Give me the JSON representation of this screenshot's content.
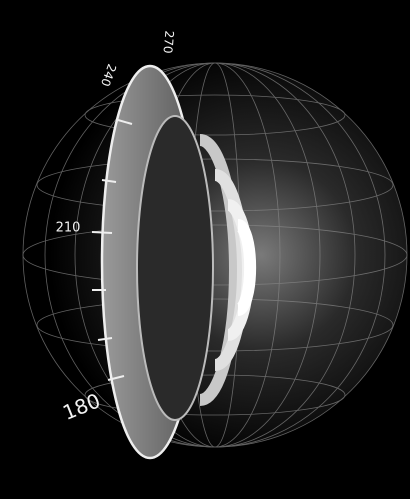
{
  "dial": {
    "labels": [
      "270",
      "240",
      "210",
      "180"
    ]
  }
}
